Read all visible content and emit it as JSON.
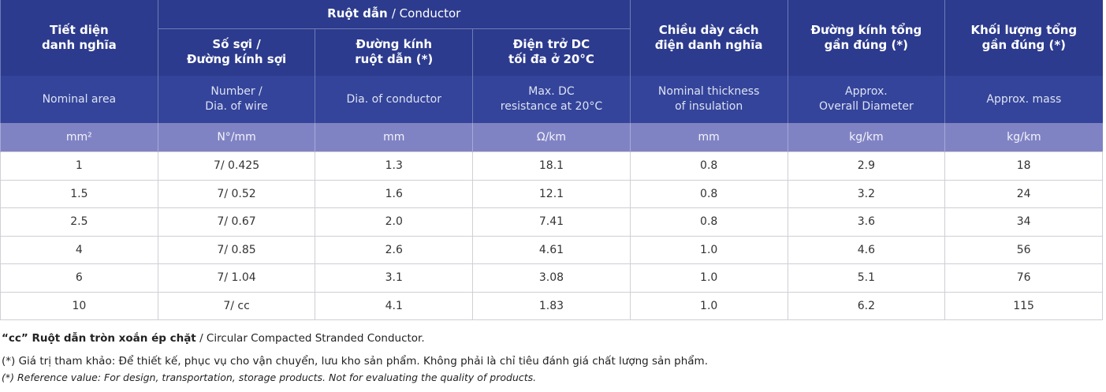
{
  "table": {
    "group_header": {
      "bold": "Ruột dẫn",
      "rest": "/ Conductor"
    },
    "columns": [
      {
        "vi": "Tiết diện\ndanh nghĩa",
        "en": "Nominal area",
        "unit": "mm²"
      },
      {
        "vi": "Số sợi /\nĐường kính sợi",
        "en": "Number /\nDia. of wire",
        "unit": "N°/mm"
      },
      {
        "vi": "Đường kính\nruột dẫn (*)",
        "en": "Dia. of conductor",
        "unit": "mm"
      },
      {
        "vi": "Điện trở DC\ntối đa ở 20°C",
        "en": "Max. DC\nresistance at 20°C",
        "unit": "Ω/km"
      },
      {
        "vi": "Chiều dày cách\nđiện danh nghĩa",
        "en": "Nominal thickness\nof insulation",
        "unit": "mm"
      },
      {
        "vi": "Đường kính tổng\ngần đúng (*)",
        "en": "Approx.\nOverall Diameter",
        "unit": "kg/km"
      },
      {
        "vi": "Khối lượng tổng\ngần đúng (*)",
        "en": "Approx. mass",
        "unit": "kg/km"
      }
    ],
    "rows": [
      [
        "1",
        "7/ 0.425",
        "1.3",
        "18.1",
        "0.8",
        "2.9",
        "18"
      ],
      [
        "1.5",
        "7/ 0.52",
        "1.6",
        "12.1",
        "0.8",
        "3.2",
        "24"
      ],
      [
        "2.5",
        "7/ 0.67",
        "2.0",
        "7.41",
        "0.8",
        "3.6",
        "34"
      ],
      [
        "4",
        "7/ 0.85",
        "2.6",
        "4.61",
        "1.0",
        "4.6",
        "56"
      ],
      [
        "6",
        "7/ 1.04",
        "3.1",
        "3.08",
        "1.0",
        "5.1",
        "76"
      ],
      [
        "10",
        "7/ cc",
        "4.1",
        "1.83",
        "1.0",
        "6.2",
        "115"
      ]
    ]
  },
  "notes": {
    "cc_bold": "“cc” Ruột dẫn tròn xoắn ép chặt",
    "cc_rest": "/ Circular Compacted Stranded Conductor.",
    "vi": "(*) Giá trị tham khảo: Để thiết kế, phục vụ cho vận chuyển, lưu kho sản phẩm. Không phải là chỉ tiêu đánh giá chất lượng sản phẩm.",
    "en": "(*) Reference value: For design, transportation, storage products. Not for evaluating the quality of products."
  }
}
